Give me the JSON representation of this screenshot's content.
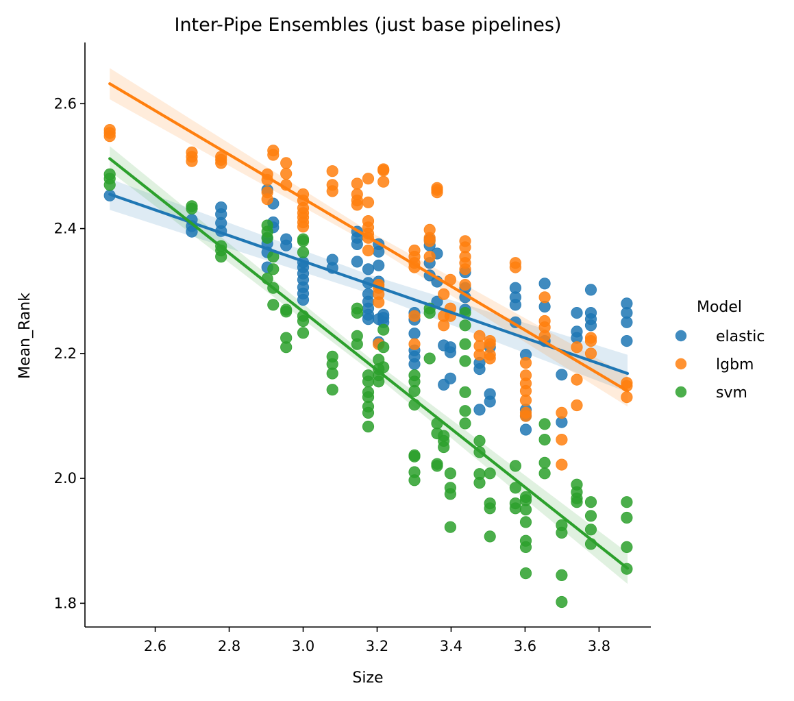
{
  "chart_data": {
    "type": "scatter",
    "title": "Inter-Pipe Ensembles (just base pipelines)",
    "xlabel": "Size",
    "ylabel": "Mean_Rank",
    "xlim": [
      2.41,
      3.94
    ],
    "ylim": [
      1.762,
      2.698
    ],
    "xticks": [
      "2.6",
      "2.8",
      "3.0",
      "3.2",
      "3.4",
      "3.6",
      "3.8"
    ],
    "yticks": [
      "1.8",
      "2.0",
      "2.2",
      "2.4",
      "2.6"
    ],
    "legend": {
      "title": "Model",
      "placement": "right"
    },
    "grid": false,
    "series": [
      {
        "name": "elastic",
        "color": "#1f77b4",
        "fit": {
          "x": [
            2.477,
            3.877
          ],
          "y": [
            2.455,
            2.168
          ],
          "band": [
            0.025,
            0.015,
            0.03
          ]
        },
        "x": [
          2.477,
          2.699,
          2.699,
          2.699,
          2.778,
          2.778,
          2.778,
          2.778,
          2.903,
          2.903,
          2.903,
          2.903,
          2.903,
          2.919,
          2.919,
          2.919,
          2.954,
          2.954,
          3.0,
          3.0,
          3.0,
          3.0,
          3.0,
          3.0,
          3.0,
          3.079,
          3.079,
          3.146,
          3.146,
          3.146,
          3.146,
          3.176,
          3.176,
          3.176,
          3.176,
          3.176,
          3.176,
          3.176,
          3.204,
          3.204,
          3.204,
          3.204,
          3.204,
          3.204,
          3.217,
          3.217,
          3.217,
          3.301,
          3.301,
          3.301,
          3.301,
          3.301,
          3.301,
          3.342,
          3.342,
          3.342,
          3.342,
          3.362,
          3.362,
          3.362,
          3.38,
          3.38,
          3.398,
          3.398,
          3.398,
          3.438,
          3.438,
          3.438,
          3.438,
          3.477,
          3.477,
          3.477,
          3.505,
          3.505,
          3.505,
          3.574,
          3.574,
          3.574,
          3.574,
          3.602,
          3.602,
          3.602,
          3.602,
          3.653,
          3.653,
          3.653,
          3.699,
          3.699,
          3.74,
          3.74,
          3.74,
          3.778,
          3.778,
          3.778,
          3.778,
          3.875,
          3.875,
          3.875,
          3.875
        ],
        "y": [
          2.453,
          2.414,
          2.404,
          2.395,
          2.434,
          2.423,
          2.409,
          2.396,
          2.462,
          2.385,
          2.376,
          2.362,
          2.338,
          2.44,
          2.41,
          2.402,
          2.383,
          2.373,
          2.346,
          2.338,
          2.328,
          2.318,
          2.306,
          2.296,
          2.286,
          2.35,
          2.337,
          2.395,
          2.385,
          2.375,
          2.347,
          2.335,
          2.313,
          2.295,
          2.283,
          2.272,
          2.262,
          2.255,
          2.375,
          2.363,
          2.341,
          2.315,
          2.255,
          2.218,
          2.262,
          2.257,
          2.25,
          2.265,
          2.254,
          2.232,
          2.205,
          2.195,
          2.183,
          2.382,
          2.373,
          2.345,
          2.325,
          2.36,
          2.315,
          2.283,
          2.213,
          2.15,
          2.21,
          2.202,
          2.16,
          2.33,
          2.305,
          2.29,
          2.27,
          2.185,
          2.175,
          2.11,
          2.21,
          2.135,
          2.123,
          2.305,
          2.29,
          2.278,
          2.25,
          2.198,
          2.11,
          2.1,
          2.078,
          2.312,
          2.275,
          2.22,
          2.166,
          2.09,
          2.265,
          2.235,
          2.225,
          2.302,
          2.265,
          2.255,
          2.245,
          2.28,
          2.265,
          2.25,
          2.22
        ]
      },
      {
        "name": "lgbm",
        "color": "#ff7f0e",
        "fit": {
          "x": [
            2.477,
            3.877
          ],
          "y": [
            2.632,
            2.14
          ],
          "band": [
            0.025,
            0.01,
            0.025
          ]
        },
        "x": [
          2.477,
          2.477,
          2.477,
          2.699,
          2.699,
          2.699,
          2.778,
          2.778,
          2.778,
          2.903,
          2.903,
          2.903,
          2.903,
          2.919,
          2.919,
          2.954,
          2.954,
          2.954,
          3.0,
          3.0,
          3.0,
          3.0,
          3.0,
          3.0,
          3.0,
          3.079,
          3.079,
          3.079,
          3.146,
          3.146,
          3.146,
          3.146,
          3.176,
          3.176,
          3.176,
          3.176,
          3.176,
          3.176,
          3.176,
          3.204,
          3.204,
          3.204,
          3.204,
          3.204,
          3.217,
          3.217,
          3.217,
          3.301,
          3.301,
          3.301,
          3.301,
          3.301,
          3.301,
          3.342,
          3.342,
          3.342,
          3.342,
          3.362,
          3.362,
          3.362,
          3.38,
          3.38,
          3.38,
          3.398,
          3.398,
          3.398,
          3.438,
          3.438,
          3.438,
          3.438,
          3.438,
          3.438,
          3.477,
          3.477,
          3.477,
          3.505,
          3.505,
          3.505,
          3.505,
          3.574,
          3.574,
          3.602,
          3.602,
          3.602,
          3.602,
          3.602,
          3.602,
          3.602,
          3.653,
          3.653,
          3.653,
          3.653,
          3.699,
          3.699,
          3.699,
          3.74,
          3.74,
          3.74,
          3.778,
          3.778,
          3.778,
          3.875,
          3.875,
          3.875
        ],
        "y": [
          2.558,
          2.553,
          2.548,
          2.522,
          2.515,
          2.508,
          2.515,
          2.51,
          2.505,
          2.487,
          2.478,
          2.458,
          2.447,
          2.525,
          2.518,
          2.505,
          2.488,
          2.47,
          2.455,
          2.445,
          2.433,
          2.425,
          2.418,
          2.41,
          2.403,
          2.492,
          2.47,
          2.46,
          2.472,
          2.455,
          2.445,
          2.438,
          2.48,
          2.442,
          2.412,
          2.402,
          2.392,
          2.385,
          2.365,
          2.31,
          2.305,
          2.295,
          2.282,
          2.215,
          2.495,
          2.493,
          2.475,
          2.365,
          2.355,
          2.345,
          2.338,
          2.26,
          2.215,
          2.398,
          2.385,
          2.38,
          2.355,
          2.465,
          2.462,
          2.458,
          2.295,
          2.26,
          2.245,
          2.318,
          2.272,
          2.26,
          2.38,
          2.37,
          2.355,
          2.345,
          2.335,
          2.31,
          2.228,
          2.212,
          2.198,
          2.22,
          2.215,
          2.198,
          2.192,
          2.345,
          2.338,
          2.185,
          2.165,
          2.152,
          2.14,
          2.125,
          2.105,
          2.1,
          2.29,
          2.252,
          2.242,
          2.228,
          2.105,
          2.062,
          2.022,
          2.21,
          2.158,
          2.117,
          2.225,
          2.22,
          2.2,
          2.153,
          2.148,
          2.13
        ]
      },
      {
        "name": "svm",
        "color": "#2ca02c",
        "fit": {
          "x": [
            2.477,
            3.877
          ],
          "y": [
            2.512,
            1.856
          ],
          "band": [
            0.02,
            0.01,
            0.025
          ]
        },
        "x": [
          2.477,
          2.477,
          2.477,
          2.699,
          2.699,
          2.778,
          2.778,
          2.778,
          2.903,
          2.903,
          2.903,
          2.903,
          2.919,
          2.919,
          2.919,
          2.919,
          2.954,
          2.954,
          2.954,
          2.954,
          3.0,
          3.0,
          3.0,
          3.0,
          3.0,
          3.0,
          3.079,
          3.079,
          3.079,
          3.079,
          3.146,
          3.146,
          3.146,
          3.146,
          3.176,
          3.176,
          3.176,
          3.176,
          3.176,
          3.176,
          3.176,
          3.204,
          3.204,
          3.204,
          3.204,
          3.217,
          3.217,
          3.217,
          3.301,
          3.301,
          3.301,
          3.301,
          3.301,
          3.301,
          3.301,
          3.301,
          3.342,
          3.342,
          3.342,
          3.362,
          3.362,
          3.362,
          3.362,
          3.38,
          3.38,
          3.38,
          3.398,
          3.398,
          3.398,
          3.398,
          3.438,
          3.438,
          3.438,
          3.438,
          3.438,
          3.438,
          3.438,
          3.477,
          3.477,
          3.477,
          3.477,
          3.505,
          3.505,
          3.505,
          3.505,
          3.574,
          3.574,
          3.574,
          3.574,
          3.602,
          3.602,
          3.602,
          3.602,
          3.602,
          3.602,
          3.602,
          3.653,
          3.653,
          3.653,
          3.653,
          3.699,
          3.699,
          3.699,
          3.699,
          3.74,
          3.74,
          3.74,
          3.74,
          3.778,
          3.778,
          3.778,
          3.778,
          3.875,
          3.875,
          3.875,
          3.875
        ],
        "y": [
          2.487,
          2.48,
          2.47,
          2.436,
          2.432,
          2.372,
          2.365,
          2.355,
          2.405,
          2.395,
          2.385,
          2.32,
          2.355,
          2.335,
          2.305,
          2.278,
          2.27,
          2.267,
          2.225,
          2.21,
          2.383,
          2.38,
          2.362,
          2.26,
          2.252,
          2.233,
          2.195,
          2.183,
          2.168,
          2.142,
          2.272,
          2.265,
          2.228,
          2.215,
          2.165,
          2.155,
          2.138,
          2.13,
          2.115,
          2.105,
          2.083,
          2.19,
          2.175,
          2.165,
          2.155,
          2.238,
          2.21,
          2.178,
          2.165,
          2.155,
          2.14,
          2.118,
          2.037,
          2.035,
          2.01,
          1.997,
          2.272,
          2.265,
          2.192,
          2.088,
          2.072,
          2.023,
          2.02,
          2.068,
          2.06,
          2.05,
          2.008,
          1.985,
          1.975,
          1.922,
          2.265,
          2.245,
          2.215,
          2.188,
          2.138,
          2.108,
          2.088,
          2.06,
          2.042,
          2.007,
          1.993,
          2.008,
          1.96,
          1.952,
          1.907,
          2.02,
          1.985,
          1.96,
          1.952,
          1.97,
          1.965,
          1.95,
          1.93,
          1.9,
          1.89,
          1.848,
          2.087,
          2.062,
          2.025,
          2.008,
          1.925,
          1.913,
          1.845,
          1.802,
          1.99,
          1.978,
          1.968,
          1.962,
          1.962,
          1.94,
          1.918,
          1.895,
          1.962,
          1.937,
          1.89,
          1.855
        ]
      }
    ]
  }
}
